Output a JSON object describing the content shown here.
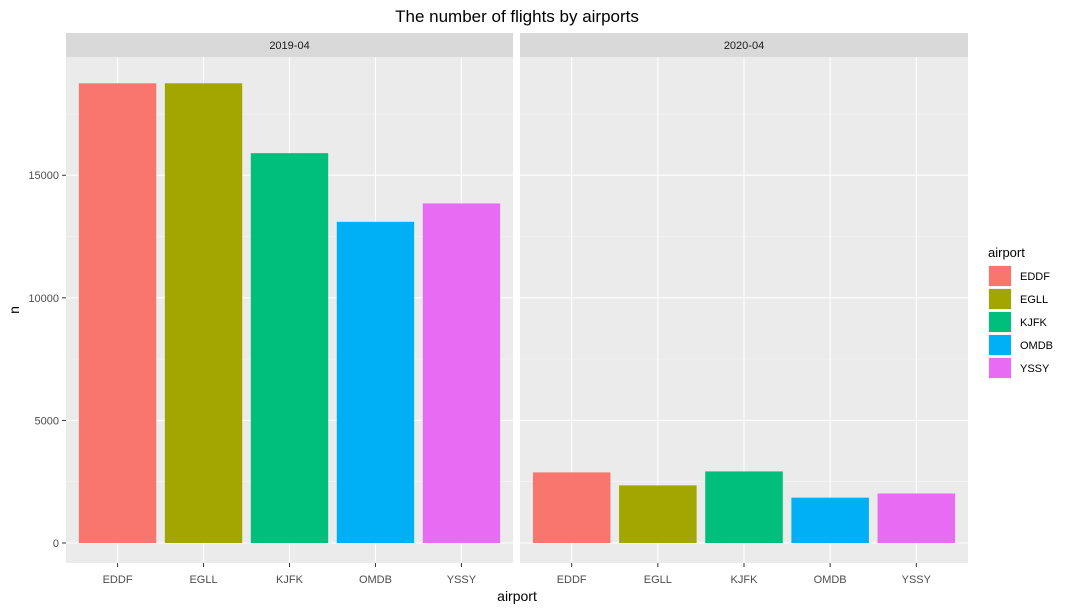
{
  "chart_data": {
    "type": "bar",
    "title": "The number of flights by airports",
    "xlabel": "airport",
    "ylabel": "n",
    "ylim": [
      0,
      19700
    ],
    "yticks": [
      0,
      5000,
      10000,
      15000
    ],
    "categories": [
      "EDDF",
      "EGLL",
      "KJFK",
      "OMDB",
      "YSSY"
    ],
    "colors": {
      "EDDF": "#F8766D",
      "EGLL": "#A3A500",
      "KJFK": "#00BF7D",
      "OMDB": "#00B0F6",
      "YSSY": "#E76BF3"
    },
    "facets": [
      {
        "label": "2019-04",
        "values": [
          18750,
          18750,
          15900,
          13100,
          13850
        ]
      },
      {
        "label": "2020-04",
        "values": [
          2880,
          2350,
          2920,
          1850,
          2020
        ]
      }
    ],
    "legend": {
      "title": "airport",
      "placement": "right",
      "entries": [
        "EDDF",
        "EGLL",
        "KJFK",
        "OMDB",
        "YSSY"
      ]
    },
    "grid": true
  }
}
